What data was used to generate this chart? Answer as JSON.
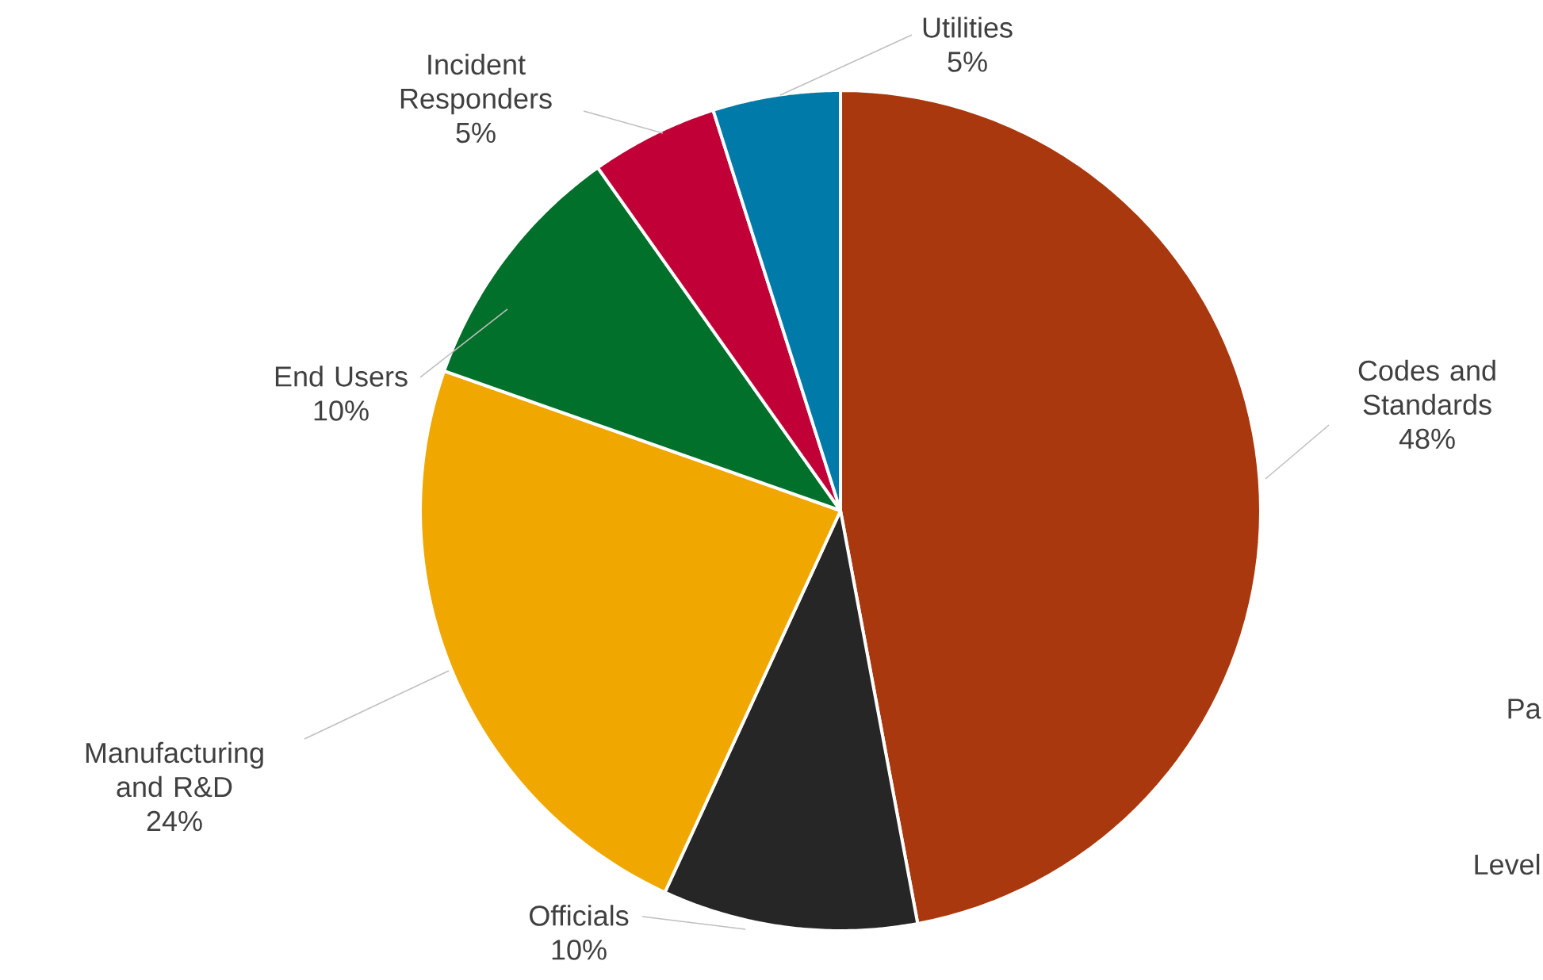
{
  "chart_data": {
    "type": "pie",
    "categories": [
      "Codes and Standards",
      "Officials",
      "Manufacturing and R&D",
      "End Users",
      "Incident Responders",
      "Utilities"
    ],
    "values": [
      48,
      10,
      24,
      10,
      5,
      5
    ],
    "value_labels": [
      "48%",
      "10%",
      "24%",
      "10%",
      "5%",
      "5%"
    ],
    "colors": [
      "#a9380f",
      "#262626",
      "#f0a800",
      "#00702a",
      "#c20038",
      "#007aa8"
    ],
    "annotations": [
      "Pa",
      "Level"
    ]
  }
}
